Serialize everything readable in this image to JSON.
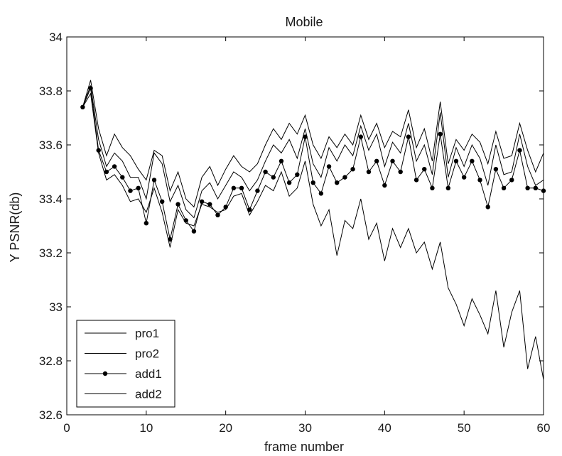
{
  "chart_data": {
    "type": "line",
    "title": "Mobile",
    "xlabel": "frame number",
    "ylabel": "Y PSNR(db)",
    "xlim": [
      0,
      60
    ],
    "ylim": [
      32.6,
      34
    ],
    "xticks": [
      0,
      10,
      20,
      30,
      40,
      50,
      60
    ],
    "yticks": [
      32.6,
      32.8,
      33,
      33.2,
      33.4,
      33.6,
      33.8,
      34
    ],
    "ytick_labels": [
      "32.6",
      "32.8",
      "33",
      "33.2",
      "33.4",
      "33.6",
      "33.8",
      "34"
    ],
    "grid": false,
    "legend_position": "bottom-left",
    "x": [
      2,
      3,
      4,
      5,
      6,
      7,
      8,
      9,
      10,
      11,
      12,
      13,
      14,
      15,
      16,
      17,
      18,
      19,
      20,
      21,
      22,
      23,
      24,
      25,
      26,
      27,
      28,
      29,
      30,
      31,
      32,
      33,
      34,
      35,
      36,
      37,
      38,
      39,
      40,
      41,
      42,
      43,
      44,
      45,
      46,
      47,
      48,
      49,
      50,
      51,
      52,
      53,
      54,
      55,
      56,
      57,
      58,
      59,
      60
    ],
    "series": [
      {
        "name": "pro1",
        "marker": "none",
        "color": "#000000",
        "values": [
          33.74,
          33.84,
          33.66,
          33.56,
          33.64,
          33.59,
          33.56,
          33.51,
          33.47,
          33.58,
          33.56,
          33.43,
          33.5,
          33.4,
          33.37,
          33.48,
          33.52,
          33.45,
          33.51,
          33.56,
          33.52,
          33.5,
          33.53,
          33.6,
          33.66,
          33.62,
          33.68,
          33.64,
          33.71,
          33.6,
          33.55,
          33.63,
          33.59,
          33.64,
          33.6,
          33.71,
          33.62,
          33.68,
          33.59,
          33.65,
          33.63,
          33.73,
          33.59,
          33.66,
          33.54,
          33.76,
          33.53,
          33.62,
          33.58,
          33.64,
          33.61,
          33.53,
          33.65,
          33.55,
          33.56,
          33.68,
          33.58,
          33.5,
          33.57
        ]
      },
      {
        "name": "pro2",
        "marker": "none",
        "color": "#000000",
        "values": [
          33.74,
          33.82,
          33.62,
          33.52,
          33.57,
          33.54,
          33.48,
          33.48,
          33.4,
          33.57,
          33.53,
          33.39,
          33.45,
          33.36,
          33.33,
          33.43,
          33.46,
          33.4,
          33.45,
          33.5,
          33.48,
          33.43,
          33.47,
          33.54,
          33.6,
          33.57,
          33.62,
          33.55,
          33.66,
          33.53,
          33.48,
          33.59,
          33.54,
          33.6,
          33.56,
          33.67,
          33.58,
          33.64,
          33.52,
          33.61,
          33.57,
          33.68,
          33.54,
          33.6,
          33.49,
          33.72,
          33.48,
          33.59,
          33.52,
          33.6,
          33.55,
          33.45,
          33.6,
          33.49,
          33.5,
          33.64,
          33.52,
          33.45,
          33.47
        ]
      },
      {
        "name": "add1",
        "marker": "circle",
        "color": "#000000",
        "values": [
          33.74,
          33.81,
          33.58,
          33.5,
          33.52,
          33.48,
          33.43,
          33.44,
          33.31,
          33.47,
          33.39,
          33.25,
          33.38,
          33.32,
          33.28,
          33.39,
          33.38,
          33.34,
          33.37,
          33.44,
          33.44,
          33.36,
          33.43,
          33.5,
          33.48,
          33.54,
          33.46,
          33.49,
          33.63,
          33.46,
          33.42,
          33.52,
          33.46,
          33.48,
          33.51,
          33.63,
          33.5,
          33.54,
          33.45,
          33.54,
          33.5,
          33.63,
          33.47,
          33.51,
          33.44,
          33.64,
          33.44,
          33.54,
          33.48,
          33.54,
          33.47,
          33.37,
          33.51,
          33.44,
          33.47,
          33.58,
          33.44,
          33.44,
          33.43
        ]
      },
      {
        "name": "add2",
        "marker": "none",
        "color": "#000000",
        "values": [
          33.74,
          33.79,
          33.57,
          33.47,
          33.49,
          33.45,
          33.39,
          33.4,
          33.35,
          33.44,
          33.35,
          33.22,
          33.36,
          33.31,
          33.3,
          33.38,
          33.37,
          33.35,
          33.36,
          33.41,
          33.42,
          33.34,
          33.39,
          33.45,
          33.43,
          33.5,
          33.41,
          33.44,
          33.54,
          33.38,
          33.3,
          33.36,
          33.19,
          33.32,
          33.29,
          33.4,
          33.25,
          33.31,
          33.17,
          33.29,
          33.22,
          33.29,
          33.2,
          33.24,
          33.14,
          33.24,
          33.07,
          33.01,
          32.93,
          33.03,
          32.97,
          32.9,
          33.06,
          32.85,
          32.98,
          33.06,
          32.77,
          32.89,
          32.73
        ]
      }
    ]
  }
}
